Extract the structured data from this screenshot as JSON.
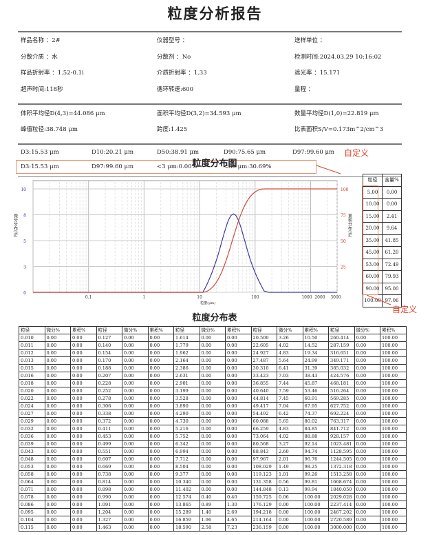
{
  "title": "粒度分析报告",
  "info": [
    [
      "样品名称 ：2#",
      "仪器型号 ：",
      "送样单位 ："
    ],
    [
      "分散介质 ：水",
      "分散剂 ：No",
      "检测时间:2024.03.29 10:16:02"
    ],
    [
      "样品折射率 ：1.52-0.1i",
      "介质折射率 ：1.33",
      "遮光率 ：15.171"
    ],
    [
      "超声时间:118秒",
      "循环转速:600",
      "量程 ："
    ]
  ],
  "averages": [
    [
      "体积平均径D(4,3)=44.086 μm",
      "面积平均径D(3,2)=34.593 μm",
      "数量平均径D(1,0)=22.819 μm"
    ],
    [
      "峰值粒径:38.748 μm",
      "跨度:1.425",
      "比表面积S/V=0.173m^2/cm^3"
    ]
  ],
  "d_values": [
    "D3:15.53 μm",
    "D10:20.21 μm",
    "D50:38.91 μm",
    "D90:75.65 μm",
    "D97:99.60 μm"
  ],
  "custom_values": [
    "D3:15.53 μm",
    "D97:99.60 μm",
    "<3 μm:0.00%",
    "<30 μm:30.69%"
  ],
  "annotation": "自定义",
  "chart_title": "粒度分布图",
  "table_title": "粒度分布表",
  "colors": {
    "differential": "#3a3aa0",
    "cumulative": "#d04a3a",
    "annotation": "#e0402a"
  },
  "chart_data": {
    "type": "line",
    "xlabel": "粒度(μm)",
    "ylabel": "微分分布(%)",
    "y2label": "累积分布(%)",
    "xscale": "log",
    "xlim": [
      0.01,
      3000
    ],
    "xticks": [
      "0.1",
      "1",
      "10",
      "100",
      "1000",
      "2000",
      "3000"
    ],
    "ylim": [
      0,
      10
    ],
    "yticks": [
      "0",
      "3",
      "5",
      "8",
      "10"
    ],
    "y2lim": [
      0,
      100
    ],
    "y2ticks": [
      "25",
      "50",
      "75",
      "100"
    ],
    "grid": true,
    "x": [
      0.01,
      10.34,
      11.402,
      12.574,
      13.865,
      15.289,
      16.859,
      18.59,
      20.5,
      22.605,
      24.927,
      27.487,
      30.31,
      33.423,
      36.855,
      40.64,
      44.814,
      49.417,
      54.492,
      60.088,
      66.259,
      73.064,
      80.568,
      88.843,
      97.967,
      108.029,
      119.123,
      131.358,
      144.848,
      159.725,
      176.129,
      3000
    ],
    "series": [
      {
        "axis": "left",
        "values": [
          0,
          0,
          0,
          0.4,
          0.89,
          1.4,
          1.96,
          2.58,
          3.26,
          4.02,
          4.83,
          5.64,
          6.41,
          7.03,
          7.44,
          7.59,
          7.45,
          7.04,
          6.42,
          5.65,
          4.83,
          4.02,
          3.27,
          2.6,
          2.01,
          1.49,
          1.01,
          0.56,
          0.13,
          0.06,
          0,
          0
        ]
      },
      {
        "axis": "right",
        "values": [
          0,
          0,
          0,
          0.4,
          1.3,
          2.69,
          4.65,
          7.23,
          10.5,
          14.52,
          19.34,
          24.99,
          31.39,
          38.43,
          45.87,
          53.46,
          60.91,
          67.95,
          74.37,
          80.02,
          84.85,
          88.88,
          92.14,
          94.74,
          96.76,
          98.25,
          99.26,
          99.81,
          99.94,
          100,
          100,
          100
        ]
      }
    ]
  },
  "custom_table": {
    "headers": [
      "粒径",
      "含量%"
    ],
    "rows": [
      [
        "5.00",
        "0.00"
      ],
      [
        "10.00",
        "0.00"
      ],
      [
        "15.00",
        "2.41"
      ],
      [
        "20.00",
        "9.64"
      ],
      [
        "35.00",
        "41.85"
      ],
      [
        "45.00",
        "61.20"
      ],
      [
        "53.00",
        "72.49"
      ],
      [
        "60.00",
        "79.93"
      ],
      [
        "90.00",
        "95.00"
      ],
      [
        "100.00",
        "97.06"
      ]
    ]
  },
  "dist_table": {
    "headers": [
      "粒径",
      "微分%",
      "累积%",
      "粒径",
      "微分%",
      "累积%",
      "粒径",
      "微分%",
      "累积%",
      "粒径",
      "微分%",
      "累积%",
      "粒径",
      "微分%",
      "累积%"
    ],
    "rows": [
      [
        "0.010",
        "0.00",
        "0.00",
        "0.127",
        "0.00",
        "0.00",
        "1.614",
        "0.00",
        "0.00",
        "20.500",
        "3.26",
        "10.50",
        "260.414",
        "0.00",
        "100.00"
      ],
      [
        "0.011",
        "0.00",
        "0.00",
        "0.140",
        "0.00",
        "0.00",
        "1.779",
        "0.00",
        "0.00",
        "22.605",
        "4.02",
        "14.52",
        "287.159",
        "0.00",
        "100.00"
      ],
      [
        "0.012",
        "0.00",
        "0.00",
        "0.154",
        "0.00",
        "0.00",
        "1.962",
        "0.00",
        "0.00",
        "24.927",
        "4.83",
        "19.34",
        "316.651",
        "0.00",
        "100.00"
      ],
      [
        "0.013",
        "0.00",
        "0.00",
        "0.170",
        "0.00",
        "0.00",
        "2.164",
        "0.00",
        "0.00",
        "27.487",
        "5.64",
        "24.99",
        "349.171",
        "0.00",
        "100.00"
      ],
      [
        "0.015",
        "0.00",
        "0.00",
        "0.188",
        "0.00",
        "0.00",
        "2.386",
        "0.00",
        "0.00",
        "30.310",
        "6.41",
        "31.39",
        "385.032",
        "0.00",
        "100.00"
      ],
      [
        "0.016",
        "0.00",
        "0.00",
        "0.207",
        "0.00",
        "0.00",
        "2.631",
        "0.00",
        "0.00",
        "33.423",
        "7.03",
        "38.43",
        "424.576",
        "0.00",
        "100.00"
      ],
      [
        "0.018",
        "0.00",
        "0.00",
        "0.228",
        "0.00",
        "0.00",
        "2.901",
        "0.00",
        "0.00",
        "36.855",
        "7.44",
        "45.87",
        "468.181",
        "0.00",
        "100.00"
      ],
      [
        "0.020",
        "0.00",
        "0.00",
        "0.252",
        "0.00",
        "0.00",
        "3.199",
        "0.00",
        "0.00",
        "40.640",
        "7.59",
        "53.46",
        "516.264",
        "0.00",
        "100.00"
      ],
      [
        "0.022",
        "0.00",
        "0.00",
        "0.278",
        "0.00",
        "0.00",
        "3.528",
        "0.00",
        "0.00",
        "44.814",
        "7.45",
        "60.91",
        "569.285",
        "0.00",
        "100.00"
      ],
      [
        "0.024",
        "0.00",
        "0.00",
        "0.306",
        "0.00",
        "0.00",
        "3.890",
        "0.00",
        "0.00",
        "49.417",
        "7.04",
        "67.95",
        "627.752",
        "0.00",
        "100.00"
      ],
      [
        "0.027",
        "0.00",
        "0.00",
        "0.338",
        "0.00",
        "0.00",
        "4.290",
        "0.00",
        "0.00",
        "54.492",
        "6.42",
        "74.37",
        "692.224",
        "0.00",
        "100.00"
      ],
      [
        "0.029",
        "0.00",
        "0.00",
        "0.372",
        "0.00",
        "0.00",
        "4.730",
        "0.00",
        "0.00",
        "60.088",
        "5.65",
        "80.02",
        "763.317",
        "0.00",
        "100.00"
      ],
      [
        "0.032",
        "0.00",
        "0.00",
        "0.411",
        "0.00",
        "0.00",
        "5.216",
        "0.00",
        "0.00",
        "66.259",
        "4.83",
        "84.85",
        "841.712",
        "0.00",
        "100.00"
      ],
      [
        "0.036",
        "0.00",
        "0.00",
        "0.453",
        "0.00",
        "0.00",
        "5.752",
        "0.00",
        "0.00",
        "73.064",
        "4.02",
        "88.88",
        "928.157",
        "0.00",
        "100.00"
      ],
      [
        "0.039",
        "0.00",
        "0.00",
        "0.499",
        "0.00",
        "0.00",
        "6.342",
        "0.00",
        "0.00",
        "80.568",
        "3.27",
        "92.14",
        "1023.481",
        "0.00",
        "100.00"
      ],
      [
        "0.043",
        "0.00",
        "0.00",
        "0.551",
        "0.00",
        "0.00",
        "6.994",
        "0.00",
        "0.00",
        "88.843",
        "2.60",
        "94.74",
        "1128.595",
        "0.00",
        "100.00"
      ],
      [
        "0.048",
        "0.00",
        "0.00",
        "0.607",
        "0.00",
        "0.00",
        "7.712",
        "0.00",
        "0.00",
        "97.967",
        "2.01",
        "96.76",
        "1244.505",
        "0.00",
        "100.00"
      ],
      [
        "0.053",
        "0.00",
        "0.00",
        "0.669",
        "0.00",
        "0.00",
        "8.504",
        "0.00",
        "0.00",
        "108.029",
        "1.49",
        "98.25",
        "1372.318",
        "0.00",
        "100.00"
      ],
      [
        "0.058",
        "0.00",
        "0.00",
        "0.738",
        "0.00",
        "0.00",
        "9.377",
        "0.00",
        "0.00",
        "119.123",
        "1.01",
        "99.26",
        "1513.258",
        "0.00",
        "100.00"
      ],
      [
        "0.064",
        "0.00",
        "0.00",
        "0.814",
        "0.00",
        "0.00",
        "10.340",
        "0.00",
        "0.00",
        "131.358",
        "0.56",
        "99.81",
        "1668.674",
        "0.00",
        "100.00"
      ],
      [
        "0.071",
        "0.00",
        "0.00",
        "0.898",
        "0.00",
        "0.00",
        "11.402",
        "0.00",
        "0.00",
        "144.848",
        "0.13",
        "99.94",
        "1840.050",
        "0.00",
        "100.00"
      ],
      [
        "0.078",
        "0.00",
        "0.00",
        "0.990",
        "0.00",
        "0.00",
        "12.574",
        "0.40",
        "0.40",
        "159.725",
        "0.06",
        "100.00",
        "2029.028",
        "0.00",
        "100.00"
      ],
      [
        "0.086",
        "0.00",
        "0.00",
        "1.091",
        "0.00",
        "0.00",
        "13.865",
        "0.89",
        "1.30",
        "176.129",
        "0.00",
        "100.00",
        "2237.414",
        "0.00",
        "100.00"
      ],
      [
        "0.095",
        "0.00",
        "0.00",
        "1.204",
        "0.00",
        "0.00",
        "15.289",
        "1.40",
        "2.69",
        "194.218",
        "0.00",
        "100.00",
        "2467.202",
        "0.00",
        "100.00"
      ],
      [
        "0.104",
        "0.00",
        "0.00",
        "1.327",
        "0.00",
        "0.00",
        "16.859",
        "1.96",
        "4.65",
        "214.164",
        "0.00",
        "100.00",
        "2720.589",
        "0.00",
        "100.00"
      ],
      [
        "0.115",
        "0.00",
        "0.00",
        "1.463",
        "0.00",
        "0.00",
        "18.590",
        "2.58",
        "7.23",
        "236.159",
        "0.00",
        "100.00",
        "3000.000",
        "0.00",
        "100.00"
      ]
    ]
  }
}
